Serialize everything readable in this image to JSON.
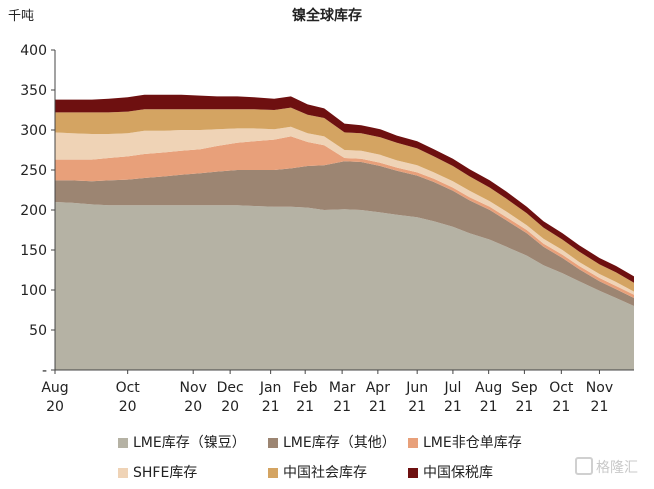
{
  "chart_data": {
    "type": "area",
    "stacked": true,
    "title": "镍全球库存",
    "ylabel": "千吨",
    "ylim": [
      0,
      400
    ],
    "yticks": [
      "-",
      "50",
      "100",
      "150",
      "200",
      "250",
      "300",
      "350",
      "400"
    ],
    "ytick_values": [
      0,
      50,
      100,
      150,
      200,
      250,
      300,
      350,
      400
    ],
    "xlim": [
      "2020-08-01",
      "2021-11-30"
    ],
    "xticks": [
      {
        "date": "2020-08-01",
        "label": [
          "Aug",
          "20"
        ]
      },
      {
        "date": "2020-10-01",
        "label": [
          "Oct",
          "20"
        ]
      },
      {
        "date": "2020-11-25",
        "label": [
          "Nov",
          "20"
        ]
      },
      {
        "date": "2020-12-26",
        "label": [
          "Dec",
          "20"
        ]
      },
      {
        "date": "2021-01-29",
        "label": [
          "Jan",
          "21"
        ]
      },
      {
        "date": "2021-02-27",
        "label": [
          "Feb",
          "21"
        ]
      },
      {
        "date": "2021-03-30",
        "label": [
          "Mar",
          "21"
        ]
      },
      {
        "date": "2021-04-29",
        "label": [
          "Apr",
          "21"
        ]
      },
      {
        "date": "2021-06-01",
        "label": [
          "Jun",
          "21"
        ]
      },
      {
        "date": "2021-07-01",
        "label": [
          "Jul",
          "21"
        ]
      },
      {
        "date": "2021-07-31",
        "label": [
          "Aug",
          "21"
        ]
      },
      {
        "date": "2021-08-30",
        "label": [
          "Sep",
          "21"
        ]
      },
      {
        "date": "2021-09-30",
        "label": [
          "Oct",
          "21"
        ]
      },
      {
        "date": "2021-11-01",
        "label": [
          "Nov",
          "21"
        ]
      }
    ],
    "x": [
      "2020-08-01",
      "2020-08-15",
      "2020-09-01",
      "2020-09-15",
      "2020-10-01",
      "2020-10-15",
      "2020-11-01",
      "2020-11-15",
      "2020-12-01",
      "2020-12-15",
      "2021-01-01",
      "2021-01-15",
      "2021-02-01",
      "2021-02-15",
      "2021-03-01",
      "2021-03-15",
      "2021-04-01",
      "2021-04-15",
      "2021-05-01",
      "2021-05-15",
      "2021-06-01",
      "2021-06-15",
      "2021-07-01",
      "2021-07-15",
      "2021-08-01",
      "2021-08-15",
      "2021-09-01",
      "2021-09-15",
      "2021-10-01",
      "2021-10-15",
      "2021-11-01",
      "2021-11-15",
      "2021-11-30"
    ],
    "series": [
      {
        "name": "LME库存（镍豆）",
        "color": "#b5b2a4",
        "values": [
          210,
          209,
          207,
          206,
          206,
          206,
          206,
          206,
          206,
          206,
          206,
          205,
          204,
          204,
          203,
          200,
          201,
          200,
          197,
          194,
          191,
          186,
          179,
          171,
          163,
          154,
          143,
          131,
          121,
          111,
          99,
          90,
          80
        ]
      },
      {
        "name": "LME库存（其他）",
        "color": "#9c8572",
        "values": [
          27,
          28,
          29,
          31,
          32,
          34,
          36,
          38,
          40,
          42,
          44,
          45,
          46,
          48,
          52,
          56,
          60,
          60,
          58,
          55,
          52,
          49,
          45,
          41,
          37,
          33,
          28,
          23,
          19,
          15,
          12,
          11,
          10
        ]
      },
      {
        "name": "LME非仓单库存",
        "color": "#e8a07a",
        "values": [
          26,
          26,
          27,
          28,
          29,
          30,
          30,
          30,
          30,
          32,
          34,
          36,
          38,
          40,
          30,
          25,
          4,
          4,
          4,
          4,
          4,
          4,
          4,
          4,
          4,
          4,
          4,
          4,
          4,
          4,
          4,
          4,
          4
        ]
      },
      {
        "name": "SHFE库存",
        "color": "#efd3b6",
        "values": [
          34,
          33,
          32,
          30,
          29,
          29,
          27,
          26,
          24,
          21,
          18,
          16,
          13,
          12,
          11,
          11,
          10,
          10,
          10,
          9,
          9,
          8,
          8,
          8,
          7,
          7,
          6,
          6,
          6,
          5,
          5,
          5,
          4
        ]
      },
      {
        "name": "中国社会库存",
        "color": "#d4a462",
        "values": [
          25,
          26,
          27,
          27,
          27,
          27,
          27,
          26,
          26,
          25,
          24,
          24,
          24,
          24,
          23,
          23,
          22,
          22,
          22,
          22,
          21,
          20,
          19,
          18,
          17,
          16,
          15,
          14,
          13,
          13,
          12,
          12,
          11
        ]
      },
      {
        "name": "中国保税库",
        "color": "#6e1010",
        "values": [
          16,
          16,
          16,
          17,
          18,
          18,
          18,
          18,
          17,
          16,
          16,
          15,
          14,
          14,
          13,
          12,
          11,
          10,
          10,
          9,
          9,
          9,
          9,
          9,
          9,
          9,
          8,
          8,
          8,
          8,
          8,
          8,
          8
        ]
      }
    ],
    "legend_position": "bottom",
    "grid": false
  },
  "watermark": "格隆汇"
}
